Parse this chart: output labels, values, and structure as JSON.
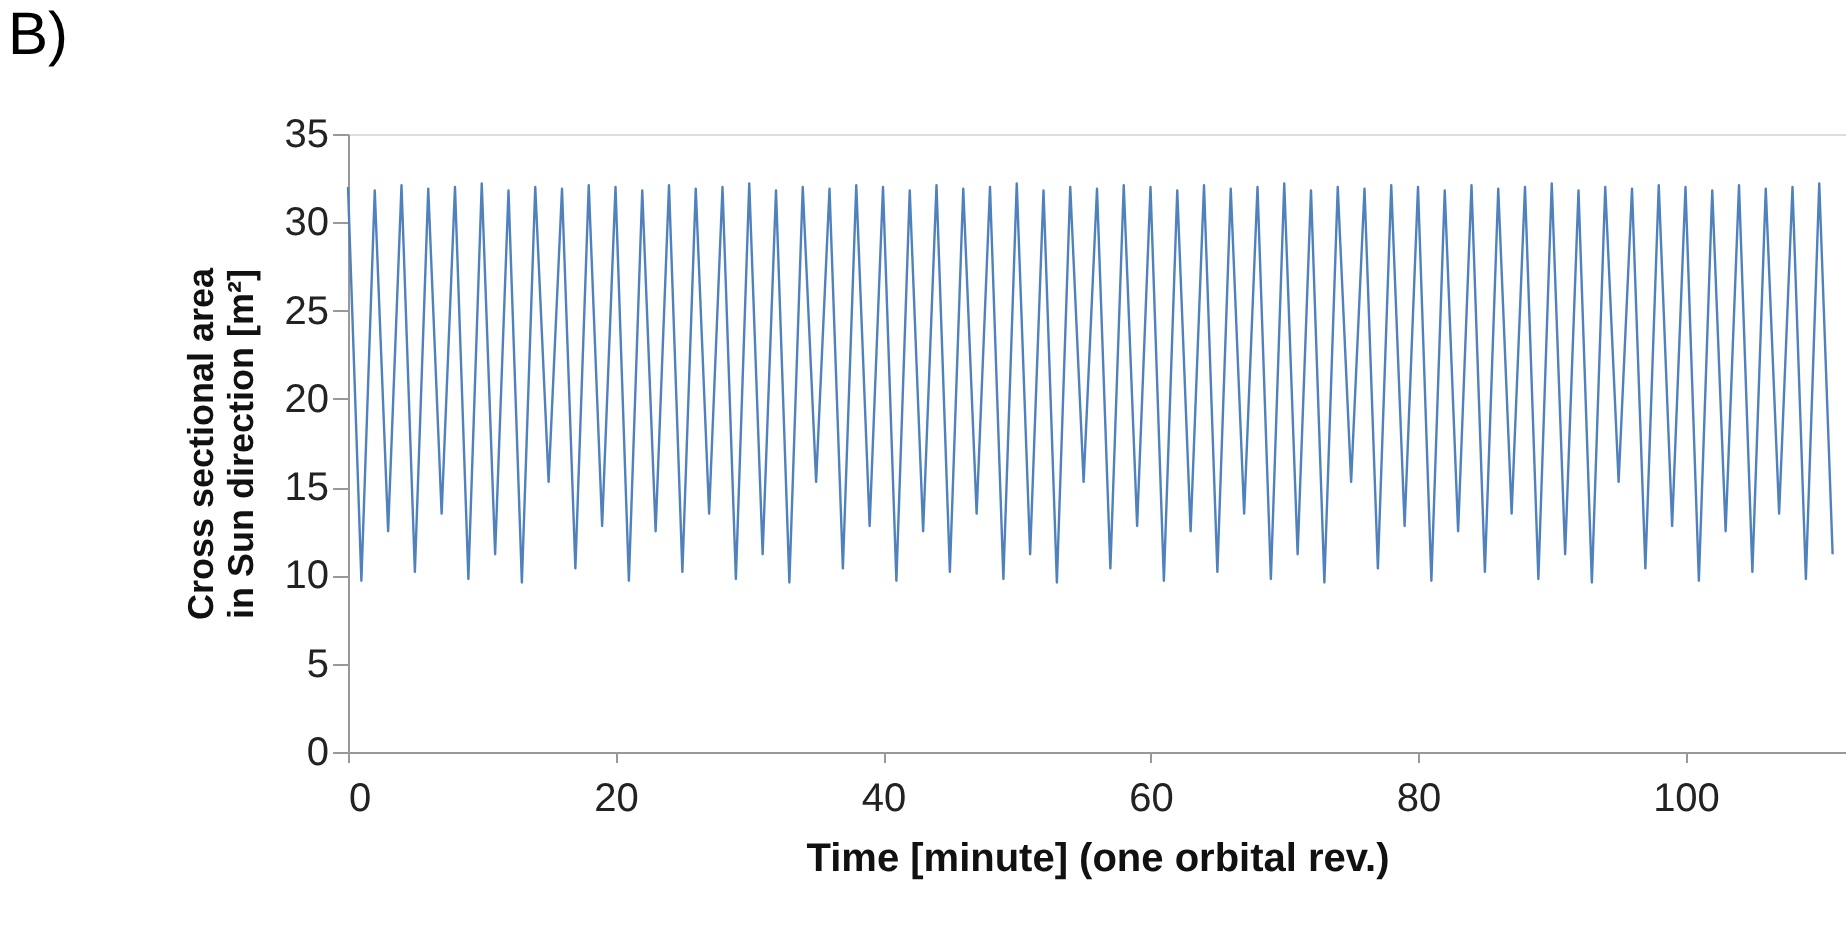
{
  "chart_data": {
    "type": "line",
    "xlabel": "Time [minute] (one orbital rev.)",
    "ylabel": "Cross sectional area\nin Sun direction [m²]",
    "annotations": [
      "B)"
    ],
    "xlim": [
      0,
      112
    ],
    "xticks": [
      0,
      20,
      40,
      60,
      80,
      100
    ],
    "ylim": [
      0,
      35
    ],
    "yticks": [
      0,
      5,
      10,
      15,
      20,
      25,
      30,
      35
    ],
    "grid": false,
    "legend": false,
    "marker": "none",
    "line_style": "solid",
    "x": [
      0,
      1,
      2,
      3,
      4,
      5,
      6,
      7,
      8,
      9,
      10,
      11,
      12,
      13,
      14,
      15,
      16,
      17,
      18,
      19,
      20,
      21,
      22,
      23,
      24,
      25,
      26,
      27,
      28,
      29,
      30,
      31,
      32,
      33,
      34,
      35,
      36,
      37,
      38,
      39,
      40,
      41,
      42,
      43,
      44,
      45,
      46,
      47,
      48,
      49,
      50,
      51,
      52,
      53,
      54,
      55,
      56,
      57,
      58,
      59,
      60,
      61,
      62,
      63,
      64,
      65,
      66,
      67,
      68,
      69,
      70,
      71,
      72,
      73,
      74,
      75,
      76,
      77,
      78,
      79,
      80,
      81,
      82,
      83,
      84,
      85,
      86,
      87,
      88,
      89,
      90,
      91,
      92,
      93,
      94,
      95,
      96,
      97,
      98,
      99,
      100,
      101,
      102,
      103,
      104,
      105,
      106,
      107,
      108,
      109,
      110,
      111
    ],
    "series": [
      {
        "color": "#4f81bd",
        "values": [
          32,
          9.7,
          31.8,
          12.5,
          32.1,
          10.2,
          31.9,
          13.5,
          32,
          9.8,
          32.2,
          11.2,
          31.8,
          9.6,
          32,
          15.3,
          31.9,
          10.4,
          32.1,
          12.8,
          32,
          9.7,
          31.8,
          12.5,
          32.1,
          10.2,
          31.9,
          13.5,
          32,
          9.8,
          32.2,
          11.2,
          31.8,
          9.6,
          32,
          15.3,
          31.9,
          10.4,
          32.1,
          12.8,
          32,
          9.7,
          31.8,
          12.5,
          32.1,
          10.2,
          31.9,
          13.5,
          32,
          9.8,
          32.2,
          11.2,
          31.8,
          9.6,
          32,
          15.3,
          31.9,
          10.4,
          32.1,
          12.8,
          32,
          9.7,
          31.8,
          12.5,
          32.1,
          10.2,
          31.9,
          13.5,
          32,
          9.8,
          32.2,
          11.2,
          31.8,
          9.6,
          32,
          15.3,
          31.9,
          10.4,
          32.1,
          12.8,
          32,
          9.7,
          31.8,
          12.5,
          32.1,
          10.2,
          31.9,
          13.5,
          32,
          9.8,
          32.2,
          11.2,
          31.8,
          9.6,
          32,
          15.3,
          31.9,
          10.4,
          32.1,
          12.8,
          32,
          9.7,
          31.8,
          12.5,
          32.1,
          10.2,
          31.9,
          13.5,
          32,
          9.8,
          32.2,
          11.2
        ]
      }
    ]
  }
}
